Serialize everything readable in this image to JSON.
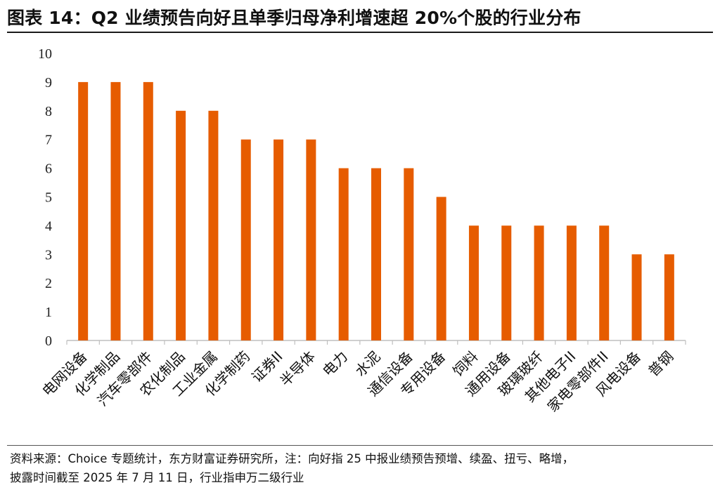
{
  "title": "图表 14：Q2 业绩预告向好且单季归母净利增速超 20%个股的行业分布",
  "footnote": [
    "资料来源：Choice 专题统计，东方财富证券研究所，注：向好指 25 中报业绩预告预增、续盈、扭亏、略增，",
    "披露时间截至 2025 年 7 月 11 日，行业指申万二级行业"
  ],
  "colors": {
    "bar": "#e65c00",
    "axis": "#bfbfbf",
    "text": "#111111"
  },
  "chart_data": {
    "type": "bar",
    "categories": [
      "电网设备",
      "化学制品",
      "汽车零部件",
      "农化制品",
      "工业金属",
      "化学制药",
      "证券II",
      "半导体",
      "电力",
      "水泥",
      "通信设备",
      "专用设备",
      "饲料",
      "通用设备",
      "玻璃玻纤",
      "其他电子II",
      "家电零部件II",
      "风电设备",
      "普钢"
    ],
    "values": [
      9,
      9,
      9,
      8,
      8,
      7,
      7,
      7,
      6,
      6,
      6,
      5,
      4,
      4,
      4,
      4,
      4,
      3,
      3
    ],
    "yticks": [
      0,
      1,
      2,
      3,
      4,
      5,
      6,
      7,
      8,
      9,
      10
    ],
    "ylim": [
      0,
      10
    ],
    "xlabel": "",
    "ylabel": "",
    "grid": false,
    "legend": "none"
  }
}
